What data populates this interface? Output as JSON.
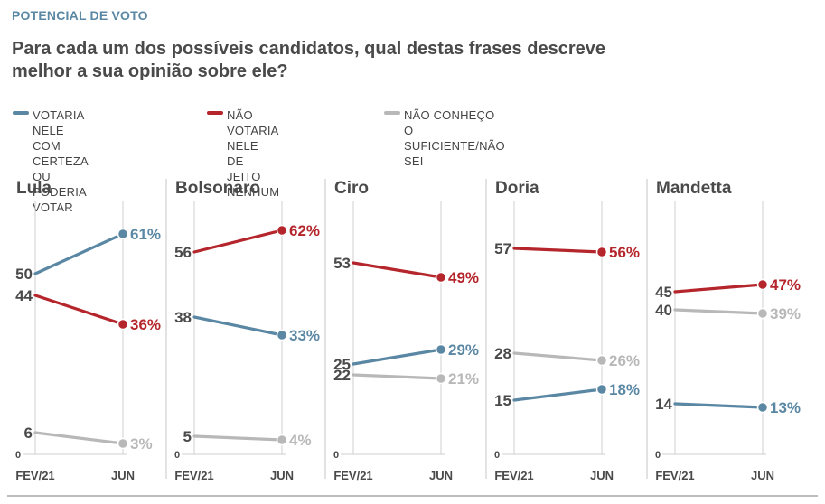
{
  "header": {
    "tag": "POTENCIAL DE VOTO",
    "question": "Para cada um dos possíveis candidatos, qual destas frases descreve melhor a sua opinião sobre ele?"
  },
  "legend": [
    {
      "label": "VOTARIA NELE\nCOM CERTEZA OU\nPODERIA VOTAR",
      "color": "#5a87a3"
    },
    {
      "label": "NÃO VOTARIA NELE\nDE JEITO NENHUM",
      "color": "#b5262c"
    },
    {
      "label": "NÃO CONHEÇO O\nSUFICIENTE/NÃO SEI",
      "color": "#b8b8b8"
    }
  ],
  "colors": {
    "votaria": "#5a87a3",
    "nao_votaria": "#b5262c",
    "nao_conheco": "#b8b8b8",
    "axis": "#cfcfcf",
    "text": "#4a4a4a"
  },
  "chart_data": [
    {
      "type": "line",
      "title": "Lula",
      "x": [
        "FEV/21",
        "JUN"
      ],
      "ylim": [
        0,
        70
      ],
      "zero_label": "0",
      "series": [
        {
          "name": "VOTARIA NELE COM CERTEZA OU PODERIA VOTAR",
          "values": [
            50,
            61
          ],
          "labels": [
            "50",
            "61%"
          ]
        },
        {
          "name": "NÃO VOTARIA NELE DE JEITO NENHUM",
          "values": [
            44,
            36
          ],
          "labels": [
            "44",
            "36%"
          ]
        },
        {
          "name": "NÃO CONHEÇO O SUFICIENTE/NÃO SEI",
          "values": [
            6,
            3
          ],
          "labels": [
            "6",
            "3%"
          ]
        }
      ]
    },
    {
      "type": "line",
      "title": "Bolsonaro",
      "x": [
        "FEV/21",
        "JUN"
      ],
      "ylim": [
        0,
        70
      ],
      "zero_label": "0",
      "series": [
        {
          "name": "VOTARIA NELE COM CERTEZA OU PODERIA VOTAR",
          "values": [
            38,
            33
          ],
          "labels": [
            "38",
            "33%"
          ]
        },
        {
          "name": "NÃO VOTARIA NELE DE JEITO NENHUM",
          "values": [
            56,
            62
          ],
          "labels": [
            "56",
            "62%"
          ]
        },
        {
          "name": "NÃO CONHEÇO O SUFICIENTE/NÃO SEI",
          "values": [
            5,
            4
          ],
          "labels": [
            "5",
            "4%"
          ]
        }
      ]
    },
    {
      "type": "line",
      "title": "Ciro",
      "x": [
        "FEV/21",
        "JUN"
      ],
      "ylim": [
        0,
        70
      ],
      "zero_label": "0",
      "series": [
        {
          "name": "VOTARIA NELE COM CERTEZA OU PODERIA VOTAR",
          "values": [
            25,
            29
          ],
          "labels": [
            "25",
            "29%"
          ]
        },
        {
          "name": "NÃO VOTARIA NELE DE JEITO NENHUM",
          "values": [
            53,
            49
          ],
          "labels": [
            "53",
            "49%"
          ]
        },
        {
          "name": "NÃO CONHEÇO O SUFICIENTE/NÃO SEI",
          "values": [
            22,
            21
          ],
          "labels": [
            "22",
            "21%"
          ]
        }
      ]
    },
    {
      "type": "line",
      "title": "Doria",
      "x": [
        "FEV/21",
        "JUN"
      ],
      "ylim": [
        0,
        70
      ],
      "zero_label": "0",
      "series": [
        {
          "name": "VOTARIA NELE COM CERTEZA OU PODERIA VOTAR",
          "values": [
            15,
            18
          ],
          "labels": [
            "15",
            "18%"
          ]
        },
        {
          "name": "NÃO VOTARIA NELE DE JEITO NENHUM",
          "values": [
            57,
            56
          ],
          "labels": [
            "57",
            "56%"
          ]
        },
        {
          "name": "NÃO CONHEÇO O SUFICIENTE/NÃO SEI",
          "values": [
            28,
            26
          ],
          "labels": [
            "28",
            "26%"
          ]
        }
      ]
    },
    {
      "type": "line",
      "title": "Mandetta",
      "x": [
        "FEV/21",
        "JUN"
      ],
      "ylim": [
        0,
        70
      ],
      "zero_label": "0",
      "series": [
        {
          "name": "VOTARIA NELE COM CERTEZA OU PODERIA VOTAR",
          "values": [
            14,
            13
          ],
          "labels": [
            "14",
            "13%"
          ]
        },
        {
          "name": "NÃO VOTARIA NELE DE JEITO NENHUM",
          "values": [
            45,
            47
          ],
          "labels": [
            "45",
            "47%"
          ]
        },
        {
          "name": "NÃO CONHEÇO O SUFICIENTE/NÃO SEI",
          "values": [
            40,
            39
          ],
          "labels": [
            "40",
            "39%"
          ]
        }
      ]
    }
  ]
}
